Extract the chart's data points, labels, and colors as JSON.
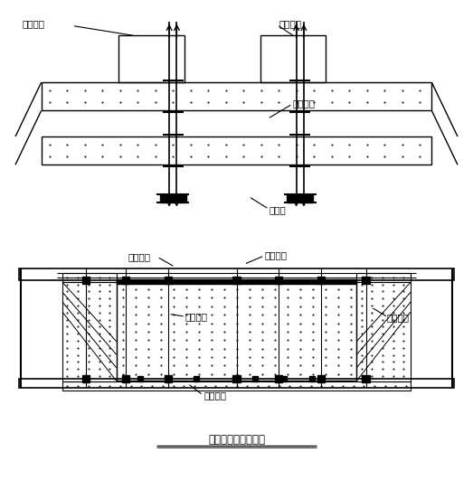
{
  "title": "中跨合拢吊架示意图",
  "bg_color": "#ffffff",
  "labels": {
    "peizhong_left": "配重水箱",
    "peizhong_right": "配重水箱",
    "gangxing": "劲性骨架",
    "chengzhong_liang": "承重梁",
    "xuandiao": "悬吊系统",
    "chengzhong_heng": "承重横梁",
    "neimo": "内模系统",
    "waimo": "外模系统",
    "dimo": "底模系统"
  },
  "fig_width": 5.23,
  "fig_height": 5.31,
  "dpi": 100
}
